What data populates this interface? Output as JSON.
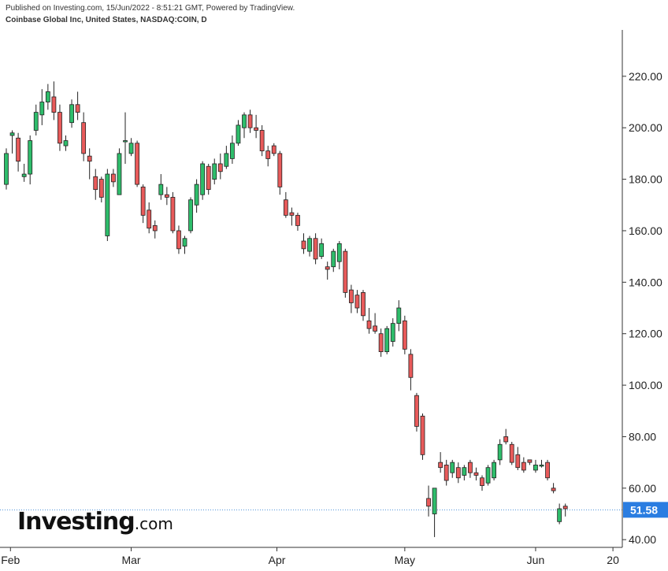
{
  "published_text": "Published on Investing.com, 15/Jun/2022 - 8:51:21 GMT, Powered by TradingView.",
  "symbol_text": "Coinbase Global Inc, United States, NASDAQ:COIN, D",
  "watermark": {
    "brand": "Investing",
    "suffix": ".com"
  },
  "colors": {
    "up": "#2ebd6b",
    "down": "#e85a5a",
    "wick": "#222222",
    "last_price_bg": "#2a7de1",
    "last_price_line": "#4a90d9"
  },
  "chart_data": {
    "type": "candlestick",
    "title": "Coinbase Global Inc, United States, NASDAQ:COIN, D",
    "ylim": [
      37,
      238
    ],
    "y_ticks": [
      "220.00",
      "200.00",
      "180.00",
      "160.00",
      "140.00",
      "120.00",
      "100.00",
      "80.00",
      "60.00",
      "40.00"
    ],
    "x_ticks": [
      "Feb",
      "Mar",
      "Apr",
      "May",
      "Jun",
      "20"
    ],
    "last_price": "51.58",
    "grid": false,
    "candles": [
      {
        "date": "Jan 31",
        "open": 178,
        "high": 192,
        "low": 176,
        "close": 190
      },
      {
        "date": "Feb 1",
        "open": 197,
        "high": 199,
        "low": 190,
        "close": 198
      },
      {
        "date": "Feb 2",
        "open": 196,
        "high": 198,
        "low": 183,
        "close": 187
      },
      {
        "date": "Feb 3",
        "open": 181,
        "high": 186,
        "low": 179,
        "close": 182
      },
      {
        "date": "Feb 4",
        "open": 182,
        "high": 197,
        "low": 178,
        "close": 195
      },
      {
        "date": "Feb 7",
        "open": 199,
        "high": 209,
        "low": 197,
        "close": 206
      },
      {
        "date": "Feb 8",
        "open": 205,
        "high": 215,
        "low": 201,
        "close": 210
      },
      {
        "date": "Feb 9",
        "open": 210,
        "high": 217,
        "low": 207,
        "close": 214
      },
      {
        "date": "Feb 10",
        "open": 212,
        "high": 218,
        "low": 203,
        "close": 206
      },
      {
        "date": "Feb 11",
        "open": 206,
        "high": 209,
        "low": 191,
        "close": 194
      },
      {
        "date": "Feb 14",
        "open": 193,
        "high": 197,
        "low": 191,
        "close": 195
      },
      {
        "date": "Feb 15",
        "open": 202,
        "high": 211,
        "low": 200,
        "close": 209
      },
      {
        "date": "Feb 16",
        "open": 209,
        "high": 214,
        "low": 203,
        "close": 206
      },
      {
        "date": "Feb 17",
        "open": 202,
        "high": 206,
        "low": 187,
        "close": 190
      },
      {
        "date": "Feb 18",
        "open": 189,
        "high": 192,
        "low": 180,
        "close": 187
      },
      {
        "date": "Feb 22",
        "open": 181,
        "high": 184,
        "low": 172,
        "close": 176
      },
      {
        "date": "Feb 23",
        "open": 180,
        "high": 181,
        "low": 171,
        "close": 173
      },
      {
        "date": "Feb 24",
        "open": 158,
        "high": 184,
        "low": 156,
        "close": 182
      },
      {
        "date": "Feb 25",
        "open": 182,
        "high": 184,
        "low": 177,
        "close": 179
      },
      {
        "date": "Feb 28",
        "open": 174,
        "high": 192,
        "low": 174,
        "close": 190
      },
      {
        "date": "Mar 1",
        "open": 195,
        "high": 206,
        "low": 186,
        "close": 195
      },
      {
        "date": "Mar 2",
        "open": 190,
        "high": 196,
        "low": 189,
        "close": 194
      },
      {
        "date": "Mar 3",
        "open": 194,
        "high": 195,
        "low": 177,
        "close": 178
      },
      {
        "date": "Mar 4",
        "open": 177,
        "high": 178,
        "low": 163,
        "close": 166
      },
      {
        "date": "Mar 7",
        "open": 168,
        "high": 171,
        "low": 159,
        "close": 161
      },
      {
        "date": "Mar 8",
        "open": 162,
        "high": 164,
        "low": 157,
        "close": 160
      },
      {
        "date": "Mar 9",
        "open": 174,
        "high": 182,
        "low": 172,
        "close": 178
      },
      {
        "date": "Mar 10",
        "open": 174,
        "high": 177,
        "low": 170,
        "close": 173
      },
      {
        "date": "Mar 11",
        "open": 173,
        "high": 175,
        "low": 159,
        "close": 160
      },
      {
        "date": "Mar 14",
        "open": 160,
        "high": 162,
        "low": 151,
        "close": 153
      },
      {
        "date": "Mar 15",
        "open": 154,
        "high": 158,
        "low": 151,
        "close": 157
      },
      {
        "date": "Mar 16",
        "open": 160,
        "high": 173,
        "low": 159,
        "close": 172
      },
      {
        "date": "Mar 17",
        "open": 170,
        "high": 180,
        "low": 167,
        "close": 178
      },
      {
        "date": "Mar 18",
        "open": 174,
        "high": 187,
        "low": 172,
        "close": 186
      },
      {
        "date": "Mar 21",
        "open": 185,
        "high": 186,
        "low": 174,
        "close": 176
      },
      {
        "date": "Mar 22",
        "open": 180,
        "high": 188,
        "low": 178,
        "close": 186
      },
      {
        "date": "Mar 23",
        "open": 186,
        "high": 190,
        "low": 180,
        "close": 183
      },
      {
        "date": "Mar 24",
        "open": 185,
        "high": 193,
        "low": 184,
        "close": 190
      },
      {
        "date": "Mar 25",
        "open": 188,
        "high": 197,
        "low": 186,
        "close": 194
      },
      {
        "date": "Mar 28",
        "open": 194,
        "high": 203,
        "low": 193,
        "close": 201
      },
      {
        "date": "Mar 29",
        "open": 200,
        "high": 206,
        "low": 196,
        "close": 205
      },
      {
        "date": "Mar 30",
        "open": 205,
        "high": 207,
        "low": 198,
        "close": 200
      },
      {
        "date": "Mar 31",
        "open": 200,
        "high": 205,
        "low": 196,
        "close": 199
      },
      {
        "date": "Apr 1",
        "open": 199,
        "high": 201,
        "low": 189,
        "close": 191
      },
      {
        "date": "Apr 4",
        "open": 191,
        "high": 193,
        "low": 185,
        "close": 188
      },
      {
        "date": "Apr 5",
        "open": 193,
        "high": 194,
        "low": 189,
        "close": 190
      },
      {
        "date": "Apr 6",
        "open": 190,
        "high": 191,
        "low": 174,
        "close": 177
      },
      {
        "date": "Apr 7",
        "open": 172,
        "high": 175,
        "low": 165,
        "close": 166
      },
      {
        "date": "Apr 8",
        "open": 167,
        "high": 169,
        "low": 162,
        "close": 166
      },
      {
        "date": "Apr 11",
        "open": 166,
        "high": 167,
        "low": 160,
        "close": 162
      },
      {
        "date": "Apr 12",
        "open": 156,
        "high": 159,
        "low": 151,
        "close": 153
      },
      {
        "date": "Apr 13",
        "open": 152,
        "high": 158,
        "low": 150,
        "close": 157
      },
      {
        "date": "Apr 14",
        "open": 157,
        "high": 159,
        "low": 147,
        "close": 149
      },
      {
        "date": "Apr 18",
        "open": 150,
        "high": 157,
        "low": 149,
        "close": 155
      },
      {
        "date": "Apr 19",
        "open": 146,
        "high": 148,
        "low": 141,
        "close": 145
      },
      {
        "date": "Apr 20",
        "open": 146,
        "high": 153,
        "low": 144,
        "close": 152
      },
      {
        "date": "Apr 21",
        "open": 148,
        "high": 156,
        "low": 145,
        "close": 155
      },
      {
        "date": "Apr 22",
        "open": 152,
        "high": 153,
        "low": 134,
        "close": 136
      },
      {
        "date": "Apr 25",
        "open": 137,
        "high": 139,
        "low": 128,
        "close": 132
      },
      {
        "date": "Apr 26",
        "open": 135,
        "high": 137,
        "low": 128,
        "close": 130
      },
      {
        "date": "Apr 27",
        "open": 136,
        "high": 137,
        "low": 125,
        "close": 127
      },
      {
        "date": "Apr 28",
        "open": 125,
        "high": 130,
        "low": 120,
        "close": 122
      },
      {
        "date": "Apr 29",
        "open": 123,
        "high": 128,
        "low": 120,
        "close": 121
      },
      {
        "date": "May 2",
        "open": 120,
        "high": 122,
        "low": 111,
        "close": 113
      },
      {
        "date": "May 3",
        "open": 113,
        "high": 123,
        "low": 112,
        "close": 122
      },
      {
        "date": "May 4",
        "open": 117,
        "high": 126,
        "low": 115,
        "close": 124
      },
      {
        "date": "May 5",
        "open": 124,
        "high": 133,
        "low": 121,
        "close": 130
      },
      {
        "date": "May 6",
        "open": 125,
        "high": 127,
        "low": 112,
        "close": 114
      },
      {
        "date": "May 9",
        "open": 112,
        "high": 114,
        "low": 98,
        "close": 103
      },
      {
        "date": "May 10",
        "open": 96,
        "high": 97,
        "low": 82,
        "close": 84
      },
      {
        "date": "May 11",
        "open": 88,
        "high": 89,
        "low": 71,
        "close": 73
      },
      {
        "date": "May 12",
        "open": 56,
        "high": 61,
        "low": 49,
        "close": 53
      },
      {
        "date": "May 13",
        "open": 50,
        "high": 60,
        "low": 41,
        "close": 60
      },
      {
        "date": "May 16",
        "open": 70,
        "high": 74,
        "low": 66,
        "close": 68
      },
      {
        "date": "May 17",
        "open": 69,
        "high": 71,
        "low": 61,
        "close": 63
      },
      {
        "date": "May 18",
        "open": 66,
        "high": 71,
        "low": 64,
        "close": 70
      },
      {
        "date": "May 19",
        "open": 68,
        "high": 70,
        "low": 62,
        "close": 64
      },
      {
        "date": "May 20",
        "open": 65,
        "high": 69,
        "low": 63,
        "close": 68
      },
      {
        "date": "May 23",
        "open": 70,
        "high": 71,
        "low": 64,
        "close": 66
      },
      {
        "date": "May 24",
        "open": 66,
        "high": 68,
        "low": 63,
        "close": 65
      },
      {
        "date": "May 25",
        "open": 64,
        "high": 65,
        "low": 59,
        "close": 61
      },
      {
        "date": "May 26",
        "open": 62,
        "high": 69,
        "low": 61,
        "close": 68
      },
      {
        "date": "May 27",
        "open": 64,
        "high": 71,
        "low": 63,
        "close": 70
      },
      {
        "date": "May 31",
        "open": 71,
        "high": 79,
        "low": 69,
        "close": 77
      },
      {
        "date": "Jun 1",
        "open": 80,
        "high": 83,
        "low": 77,
        "close": 78
      },
      {
        "date": "Jun 2",
        "open": 77,
        "high": 78,
        "low": 69,
        "close": 70
      },
      {
        "date": "Jun 3",
        "open": 73,
        "high": 76,
        "low": 67,
        "close": 68
      },
      {
        "date": "Jun 6",
        "open": 70,
        "high": 72,
        "low": 66,
        "close": 67
      },
      {
        "date": "Jun 7",
        "open": 71,
        "high": 71,
        "low": 69,
        "close": 70
      },
      {
        "date": "Jun 8",
        "open": 67,
        "high": 71,
        "low": 66,
        "close": 69
      },
      {
        "date": "Jun 9",
        "open": 69,
        "high": 71,
        "low": 68,
        "close": 69
      },
      {
        "date": "Jun 10",
        "open": 70,
        "high": 71,
        "low": 63,
        "close": 64
      },
      {
        "date": "Jun 13",
        "open": 60,
        "high": 62,
        "low": 58,
        "close": 59
      },
      {
        "date": "Jun 14",
        "open": 47,
        "high": 54,
        "low": 46,
        "close": 52
      },
      {
        "date": "Jun 15",
        "open": 53,
        "high": 54,
        "low": 49,
        "close": 52
      }
    ]
  }
}
